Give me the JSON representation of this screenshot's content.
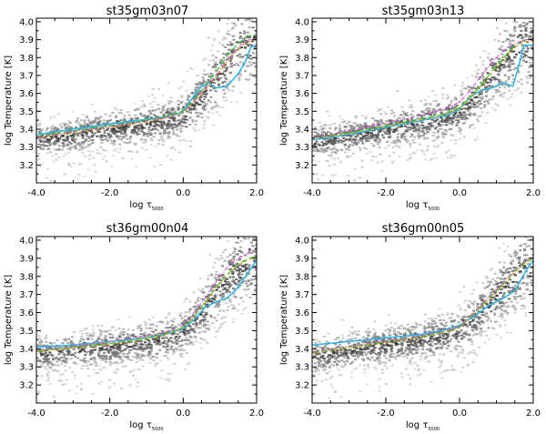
{
  "chart_data": [
    {
      "type": "scatter",
      "title": "st35gm03n07",
      "xlabel": "log τ",
      "xlabel_sub": "5000",
      "ylabel": "log Temperature [K]",
      "xlim": [
        -4.0,
        2.0
      ],
      "ylim": [
        3.1,
        4.02
      ],
      "xticks": [
        -4.0,
        -2.0,
        0.0,
        2.0
      ],
      "xtick_labels": [
        "-4.0",
        "-2.0",
        "0.0",
        "2.0"
      ],
      "yticks": [
        3.2,
        3.3,
        3.4,
        3.5,
        3.6,
        3.7,
        3.8,
        3.9,
        4.0
      ],
      "ytick_labels": [
        "3.2",
        "3.3",
        "3.4",
        "3.5",
        "3.6",
        "3.7",
        "3.8",
        "3.9",
        "4.0"
      ],
      "series": [
        {
          "name": "cyan solid",
          "color": "#2bb5e6",
          "x": [
            -4.0,
            -3.0,
            -2.0,
            -1.0,
            -0.3,
            0.0,
            0.2,
            0.45,
            0.7,
            0.9,
            1.2,
            1.5,
            1.7,
            1.85,
            2.0
          ],
          "y": [
            3.37,
            3.4,
            3.43,
            3.455,
            3.475,
            3.5,
            3.56,
            3.63,
            3.66,
            3.63,
            3.64,
            3.71,
            3.78,
            3.86,
            3.87
          ]
        },
        {
          "name": "green dashed",
          "color": "#33cc33",
          "x": [
            -4.0,
            -3.0,
            -2.0,
            -1.0,
            -0.5,
            0.0,
            0.3,
            0.6,
            0.9,
            1.2,
            1.5,
            1.8,
            2.0
          ],
          "y": [
            3.36,
            3.39,
            3.42,
            3.45,
            3.47,
            3.5,
            3.57,
            3.64,
            3.72,
            3.81,
            3.88,
            3.92,
            3.93
          ]
        },
        {
          "name": "magenta dash-dot",
          "color": "#dd55dd",
          "x": [
            -4.0,
            -3.0,
            -2.0,
            -1.0,
            -0.5,
            0.0,
            0.3,
            0.6,
            0.9,
            1.2,
            1.5,
            1.8,
            2.0
          ],
          "y": [
            3.355,
            3.385,
            3.415,
            3.445,
            3.465,
            3.49,
            3.56,
            3.63,
            3.7,
            3.79,
            3.86,
            3.9,
            3.91
          ]
        },
        {
          "name": "orange dashed",
          "color": "#f0a020",
          "x": [
            -4.0,
            -3.0,
            -2.0,
            -1.0,
            -0.5,
            0.0,
            0.3,
            0.6,
            0.9,
            1.2,
            1.5,
            1.8,
            2.0
          ],
          "y": [
            3.35,
            3.38,
            3.41,
            3.44,
            3.46,
            3.49,
            3.555,
            3.62,
            3.69,
            3.78,
            3.85,
            3.89,
            3.9
          ]
        }
      ]
    },
    {
      "type": "scatter",
      "title": "st35gm03n13",
      "xlabel": "log τ",
      "xlabel_sub": "5000",
      "ylabel": "log Temperature [K]",
      "xlim": [
        -4.0,
        2.0
      ],
      "ylim": [
        3.1,
        4.02
      ],
      "xticks": [
        -4.0,
        -2.0,
        0.0,
        2.0
      ],
      "xtick_labels": [
        "-4.0",
        "-2.0",
        "0.0",
        "2.0"
      ],
      "yticks": [
        3.2,
        3.3,
        3.4,
        3.5,
        3.6,
        3.7,
        3.8,
        3.9,
        4.0
      ],
      "ytick_labels": [
        "3.2",
        "3.3",
        "3.4",
        "3.5",
        "3.6",
        "3.7",
        "3.8",
        "3.9",
        "4.0"
      ],
      "series": [
        {
          "name": "cyan solid",
          "color": "#2bb5e6",
          "x": [
            -4.0,
            -3.0,
            -2.0,
            -1.0,
            -0.3,
            0.0,
            0.3,
            0.6,
            0.9,
            1.2,
            1.45,
            1.6,
            1.75,
            2.0
          ],
          "y": [
            3.34,
            3.37,
            3.41,
            3.45,
            3.48,
            3.51,
            3.58,
            3.62,
            3.63,
            3.66,
            3.64,
            3.75,
            3.87,
            3.87
          ]
        },
        {
          "name": "green dashed",
          "color": "#33cc33",
          "x": [
            -4.0,
            -3.0,
            -2.0,
            -1.0,
            -0.5,
            0.0,
            0.3,
            0.6,
            0.9,
            1.2,
            1.5,
            1.8,
            2.0
          ],
          "y": [
            3.35,
            3.38,
            3.42,
            3.46,
            3.48,
            3.52,
            3.58,
            3.65,
            3.73,
            3.8,
            3.87,
            3.9,
            3.9
          ]
        },
        {
          "name": "magenta dash-dot",
          "color": "#dd55dd",
          "x": [
            -4.0,
            -3.0,
            -2.0,
            -1.0,
            -0.5,
            0.0,
            0.3,
            0.6,
            0.9,
            1.2,
            1.5,
            1.8,
            2.0
          ],
          "y": [
            3.35,
            3.39,
            3.43,
            3.48,
            3.51,
            3.55,
            3.62,
            3.7,
            3.78,
            3.84,
            3.88,
            3.9,
            3.9
          ]
        },
        {
          "name": "orange dashed",
          "color": "#f0a020",
          "x": [
            -4.0,
            -3.0,
            -2.0,
            -1.0,
            -0.5,
            0.0,
            0.3,
            0.6,
            0.9,
            1.2,
            1.5,
            1.8,
            2.0
          ],
          "y": [
            3.345,
            3.375,
            3.415,
            3.455,
            3.475,
            3.51,
            3.575,
            3.645,
            3.72,
            3.79,
            3.86,
            3.89,
            3.89
          ]
        }
      ]
    },
    {
      "type": "scatter",
      "title": "st36gm00n04",
      "xlabel": "log τ",
      "xlabel_sub": "5000",
      "ylabel": "log Temperature [K]",
      "xlim": [
        -4.0,
        2.0
      ],
      "ylim": [
        3.1,
        4.02
      ],
      "xticks": [
        -4.0,
        -2.0,
        0.0,
        2.0
      ],
      "xtick_labels": [
        "-4.0",
        "-2.0",
        "0.0",
        "2.0"
      ],
      "yticks": [
        3.2,
        3.3,
        3.4,
        3.5,
        3.6,
        3.7,
        3.8,
        3.9,
        4.0
      ],
      "ytick_labels": [
        "3.2",
        "3.3",
        "3.4",
        "3.5",
        "3.6",
        "3.7",
        "3.8",
        "3.9",
        "4.0"
      ],
      "series": [
        {
          "name": "cyan solid",
          "color": "#2bb5e6",
          "x": [
            -4.0,
            -3.0,
            -2.0,
            -1.0,
            -0.5,
            0.0,
            0.3,
            0.6,
            0.9,
            1.2,
            1.5,
            1.8,
            2.0
          ],
          "y": [
            3.41,
            3.42,
            3.44,
            3.46,
            3.48,
            3.51,
            3.56,
            3.63,
            3.66,
            3.68,
            3.74,
            3.83,
            3.89
          ]
        },
        {
          "name": "green dashed",
          "color": "#33cc33",
          "x": [
            -4.0,
            -3.0,
            -2.0,
            -1.0,
            -0.5,
            0.0,
            0.3,
            0.6,
            0.9,
            1.2,
            1.5,
            1.8,
            2.0
          ],
          "y": [
            3.39,
            3.41,
            3.43,
            3.46,
            3.48,
            3.52,
            3.58,
            3.66,
            3.74,
            3.81,
            3.87,
            3.9,
            3.91
          ]
        },
        {
          "name": "magenta dash-dot",
          "color": "#dd55dd",
          "x": [
            -4.0,
            -3.0,
            -2.0,
            -1.0,
            -0.5,
            0.0,
            0.3,
            0.6,
            0.9,
            1.2,
            1.5,
            1.8,
            2.0
          ],
          "y": [
            3.395,
            3.415,
            3.44,
            3.47,
            3.49,
            3.53,
            3.6,
            3.68,
            3.77,
            3.85,
            3.9,
            3.93,
            3.93
          ]
        },
        {
          "name": "orange dashed",
          "color": "#f0a020",
          "x": [
            -4.0,
            -3.0,
            -2.0,
            -1.0,
            -0.5,
            0.0,
            0.3,
            0.6,
            0.9,
            1.2,
            1.5,
            1.8,
            2.0
          ],
          "y": [
            3.385,
            3.405,
            3.425,
            3.455,
            3.475,
            3.515,
            3.575,
            3.655,
            3.735,
            3.805,
            3.865,
            3.895,
            3.905
          ]
        }
      ]
    },
    {
      "type": "scatter",
      "title": "st36gm00n05",
      "xlabel": "log τ",
      "xlabel_sub": "5000",
      "ylabel": "log Temperature [K]",
      "xlim": [
        -4.0,
        2.0
      ],
      "ylim": [
        3.1,
        4.02
      ],
      "xticks": [
        -4.0,
        -2.0,
        0.0,
        2.0
      ],
      "xtick_labels": [
        "-4.0",
        "-2.0",
        "0.0",
        "2.0"
      ],
      "yticks": [
        3.2,
        3.3,
        3.4,
        3.5,
        3.6,
        3.7,
        3.8,
        3.9,
        4.0
      ],
      "ytick_labels": [
        "3.2",
        "3.3",
        "3.4",
        "3.5",
        "3.6",
        "3.7",
        "3.8",
        "3.9",
        "4.0"
      ],
      "series": [
        {
          "name": "cyan solid",
          "color": "#2bb5e6",
          "x": [
            -4.0,
            -3.0,
            -2.0,
            -1.0,
            -0.5,
            0.0,
            0.4,
            0.8,
            1.2,
            1.5,
            1.8,
            2.0
          ],
          "y": [
            3.42,
            3.44,
            3.46,
            3.48,
            3.5,
            3.53,
            3.58,
            3.64,
            3.68,
            3.72,
            3.83,
            3.89
          ]
        },
        {
          "name": "green dashed",
          "color": "#33cc33",
          "x": [
            -4.0,
            -3.0,
            -2.0,
            -1.0,
            -0.5,
            0.0,
            0.4,
            0.8,
            1.2,
            1.5,
            1.8,
            2.0
          ],
          "y": [
            3.38,
            3.41,
            3.44,
            3.47,
            3.49,
            3.52,
            3.6,
            3.68,
            3.76,
            3.83,
            3.88,
            3.9
          ]
        },
        {
          "name": "magenta dash-dot",
          "color": "#dd55dd",
          "x": [
            -4.0,
            -3.0,
            -2.0,
            -1.0,
            -0.5,
            0.0,
            0.4,
            0.8,
            1.2,
            1.5,
            1.8,
            2.0
          ],
          "y": [
            3.385,
            3.415,
            3.445,
            3.475,
            3.495,
            3.525,
            3.605,
            3.69,
            3.77,
            3.84,
            3.89,
            3.91
          ]
        },
        {
          "name": "orange dashed",
          "color": "#f0a020",
          "x": [
            -4.0,
            -3.0,
            -2.0,
            -1.0,
            -0.5,
            0.0,
            0.4,
            0.8,
            1.2,
            1.5,
            1.8,
            2.0
          ],
          "y": [
            3.375,
            3.405,
            3.435,
            3.465,
            3.485,
            3.515,
            3.595,
            3.675,
            3.755,
            3.825,
            3.875,
            3.895
          ]
        }
      ]
    }
  ]
}
